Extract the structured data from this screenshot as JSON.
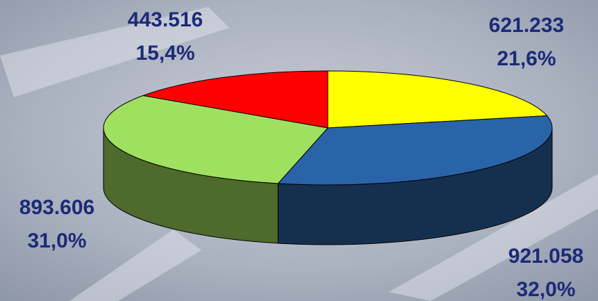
{
  "chart_data": {
    "type": "pie3d",
    "values": [
      621233,
      921058,
      893606,
      443516
    ],
    "value_labels": [
      "621.233",
      "921.058",
      "893.606",
      "443.516"
    ],
    "shares": [
      21.6,
      32.0,
      31.0,
      15.4
    ],
    "share_labels": [
      "21,6%",
      "32,0%",
      "31,0%",
      "15,4%"
    ],
    "colors": [
      "#ffff00",
      "#2a64a8",
      "#a0e060",
      "#ff0000"
    ],
    "side_colors": [
      "#b0b000",
      "#15304f",
      "#4e6a2c",
      "#a00000"
    ]
  }
}
